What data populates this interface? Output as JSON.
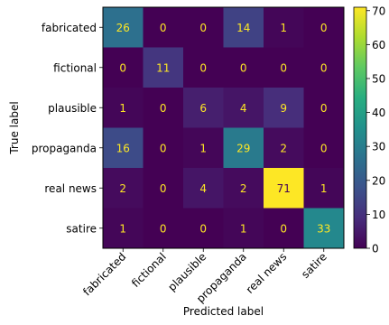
{
  "chart_data": {
    "type": "heatmap",
    "title": "",
    "xlabel": "Predicted label",
    "ylabel": "True label",
    "x_categories": [
      "fabricated",
      "fictional",
      "plausible",
      "propaganda",
      "real news",
      "satire"
    ],
    "y_categories": [
      "fabricated",
      "fictional",
      "plausible",
      "propaganda",
      "real news",
      "satire"
    ],
    "matrix": [
      [
        26,
        0,
        0,
        14,
        1,
        0
      ],
      [
        0,
        11,
        0,
        0,
        0,
        0
      ],
      [
        1,
        0,
        6,
        4,
        9,
        0
      ],
      [
        16,
        0,
        1,
        29,
        2,
        0
      ],
      [
        2,
        0,
        4,
        2,
        71,
        1
      ],
      [
        1,
        0,
        0,
        1,
        0,
        33
      ]
    ],
    "colorbar": {
      "min": 0,
      "max": 71,
      "ticks": [
        "0",
        "10",
        "20",
        "30",
        "40",
        "50",
        "60",
        "70"
      ],
      "colormap": "viridis"
    },
    "text_colors": {
      "on_dark": "#fde725",
      "on_light": "#440154"
    }
  }
}
